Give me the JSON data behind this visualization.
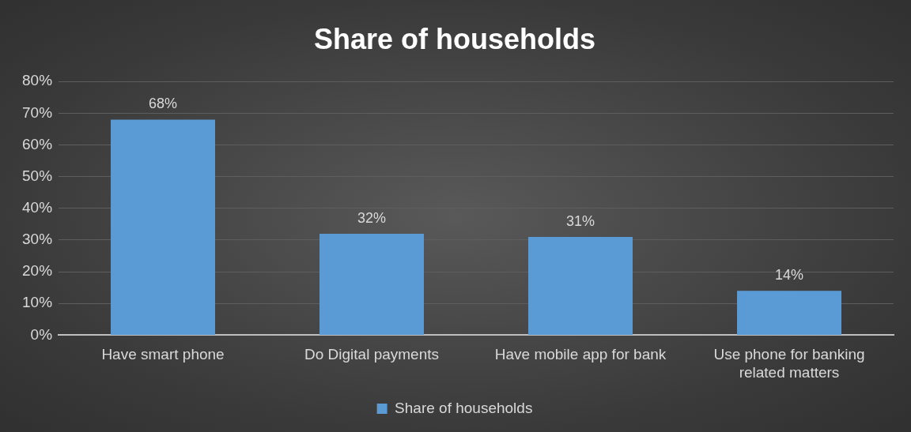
{
  "chart_data": {
    "type": "bar",
    "title": "Share of households",
    "categories": [
      "Have smart phone",
      "Do Digital payments",
      "Have mobile app for bank",
      "Use phone for banking related matters"
    ],
    "series": [
      {
        "name": "Share of households",
        "color": "#5b9bd5",
        "values": [
          68,
          32,
          31,
          14
        ],
        "value_labels": [
          "68%",
          "32%",
          "31%",
          "14%"
        ]
      }
    ],
    "ylim": [
      0,
      80
    ],
    "yticks": [
      {
        "value": 0,
        "label": "0%"
      },
      {
        "value": 10,
        "label": "10%"
      },
      {
        "value": 20,
        "label": "20%"
      },
      {
        "value": 30,
        "label": "30%"
      },
      {
        "value": 40,
        "label": "40%"
      },
      {
        "value": 50,
        "label": "50%"
      },
      {
        "value": 60,
        "label": "60%"
      },
      {
        "value": 70,
        "label": "70%"
      },
      {
        "value": 80,
        "label": "80%"
      }
    ],
    "grid": "y",
    "legend": "bottom"
  }
}
